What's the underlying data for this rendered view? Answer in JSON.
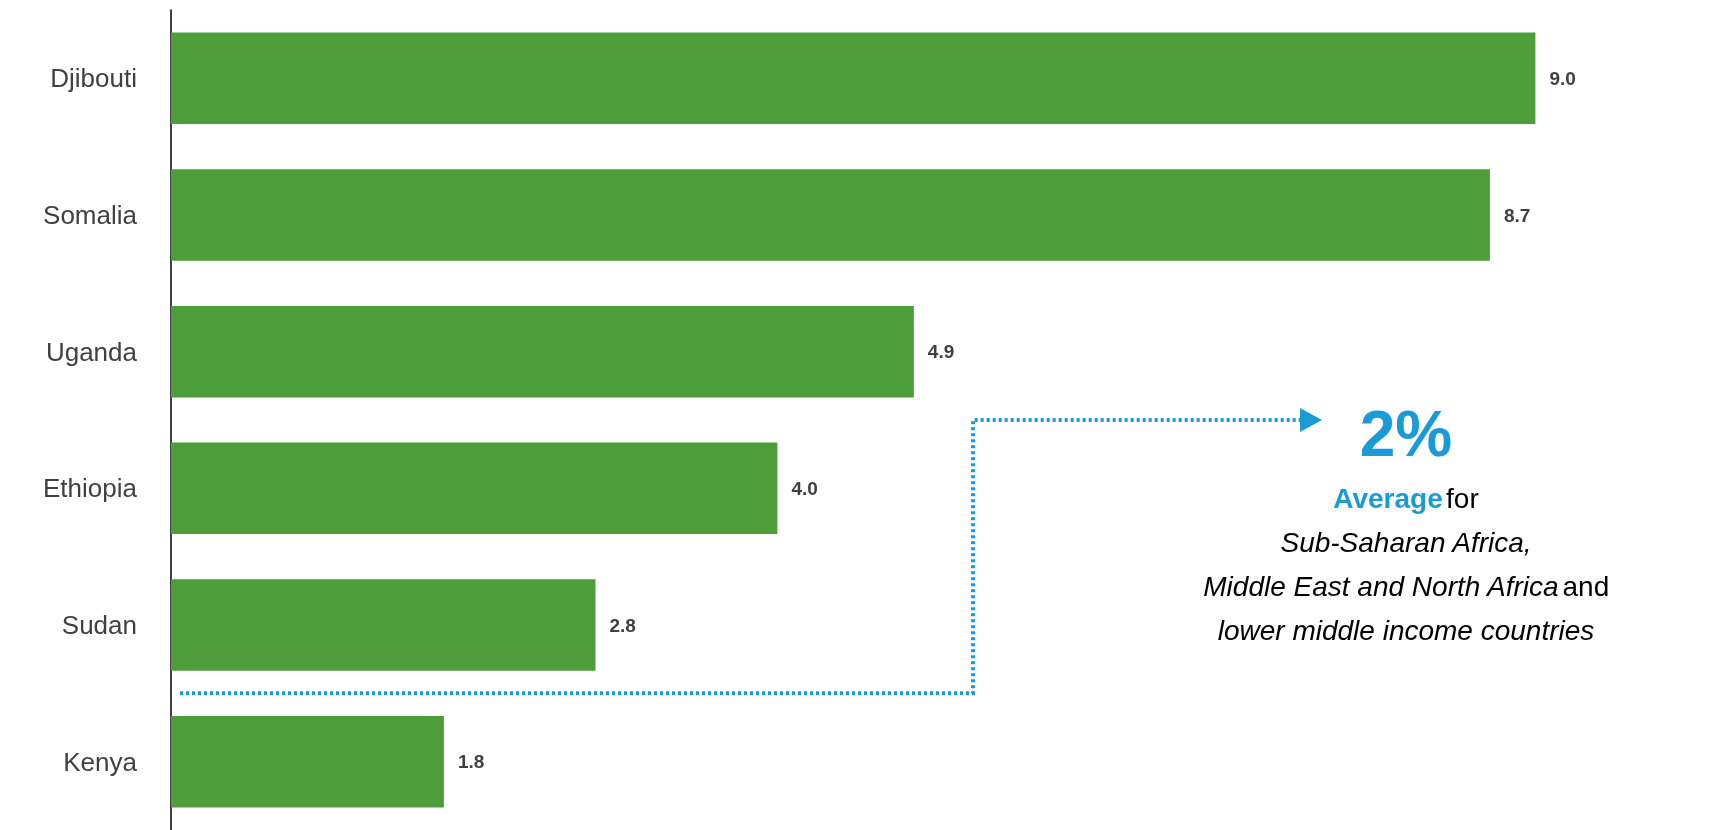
{
  "chart_data": {
    "type": "bar",
    "orientation": "horizontal",
    "categories": [
      "Djibouti",
      "Somalia",
      "Uganda",
      "Ethiopia",
      "Sudan",
      "Kenya"
    ],
    "values": [
      9.0,
      8.7,
      4.9,
      4.0,
      2.8,
      1.8
    ],
    "value_labels": [
      "9.0",
      "8.7",
      "4.9",
      "4.0",
      "2.8",
      "1.8"
    ],
    "color": "#4d9e3a",
    "annotations": [
      "2%",
      "Average",
      "for",
      "Sub-Saharan Africa,",
      "Middle East and North Africa",
      "and",
      "lower middle income countries"
    ]
  }
}
